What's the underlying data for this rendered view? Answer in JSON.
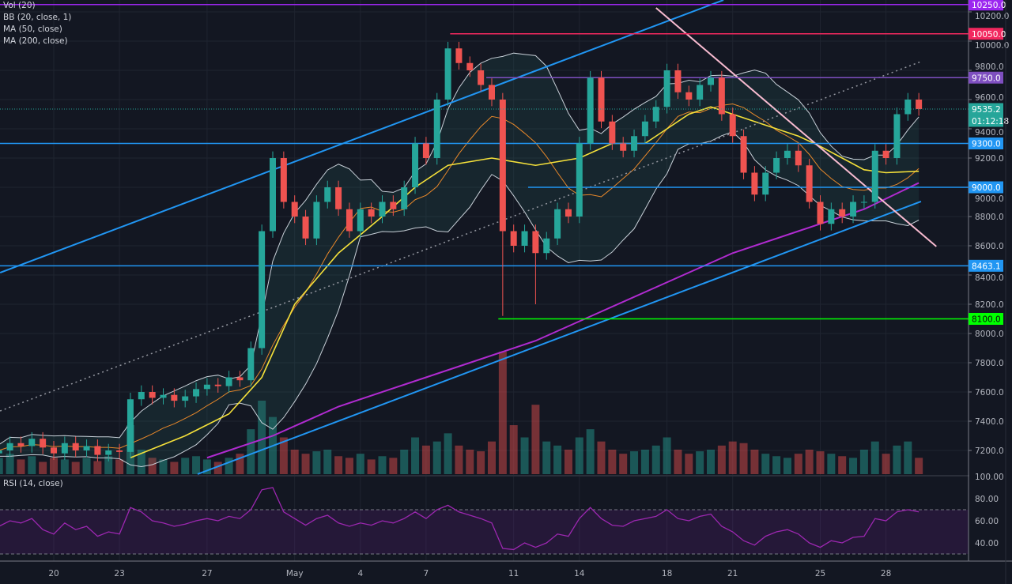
{
  "legend": [
    "Vol (20)",
    "BB (20, close, 1)",
    "MA (50, close)",
    "MA (200, close)"
  ],
  "rsi_label": "RSI (14, close)",
  "colors": {
    "background": "#131722",
    "up": "#26a69a",
    "down": "#ef5350",
    "ma50": "#f5e13a",
    "ma200": "#b02bd0",
    "bb": "#c8d0d8",
    "bb_basis": "#e8882a",
    "rsi": "#9c27b0"
  },
  "chart_data": {
    "type": "candlestick",
    "price_ticks": [
      "10200.0",
      "10000.0",
      "9800.0",
      "9600.0",
      "9400.0",
      "9200.0",
      "9000.0",
      "8800.0",
      "8600.0",
      "8400.0",
      "8200.0",
      "8000.0",
      "7800.0",
      "7600.0",
      "7400.0",
      "7200.0"
    ],
    "price_tick_values": [
      10200,
      10000,
      9800,
      9600,
      9400,
      9200,
      9000,
      8800,
      8600,
      8400,
      8200,
      8000,
      7800,
      7600,
      7400,
      7200
    ],
    "time_ticks": [
      {
        "label": "20",
        "day": 0
      },
      {
        "label": "23",
        "day": 3
      },
      {
        "label": "27",
        "day": 7
      },
      {
        "label": "May",
        "day": 11
      },
      {
        "label": "4",
        "day": 14
      },
      {
        "label": "7",
        "day": 17
      },
      {
        "label": "11",
        "day": 21
      },
      {
        "label": "14",
        "day": 24
      },
      {
        "label": "18",
        "day": 28
      },
      {
        "label": "21",
        "day": 31
      },
      {
        "label": "25",
        "day": 35
      },
      {
        "label": "28",
        "day": 38
      }
    ],
    "start_day": -2.5,
    "step_days": 0.5,
    "closes": [
      7200,
      7250,
      7230,
      7280,
      7220,
      7180,
      7250,
      7200,
      7230,
      7170,
      7200,
      7190,
      7550,
      7600,
      7560,
      7580,
      7540,
      7570,
      7620,
      7650,
      7640,
      7700,
      7680,
      7900,
      8700,
      9200,
      8900,
      8800,
      8650,
      8900,
      9000,
      8850,
      8700,
      8850,
      8800,
      8900,
      8850,
      9000,
      9300,
      9200,
      9600,
      9950,
      9850,
      9800,
      9700,
      9600,
      8700,
      8600,
      8700,
      8550,
      8650,
      8850,
      8800,
      9300,
      9750,
      9450,
      9300,
      9250,
      9350,
      9450,
      9550,
      9800,
      9650,
      9600,
      9700,
      9750,
      9500,
      9350,
      9100,
      8950,
      9100,
      9200,
      9250,
      9150,
      8900,
      8750,
      8850,
      8800,
      8900,
      8900,
      9250,
      9200,
      9500,
      9600,
      9535
    ],
    "wick_lows": {
      "46": 8120,
      "49": 8200
    },
    "volumes": [
      20,
      25,
      18,
      22,
      15,
      20,
      18,
      15,
      20,
      16,
      22,
      18,
      60,
      30,
      20,
      18,
      15,
      20,
      22,
      18,
      15,
      20,
      25,
      55,
      90,
      70,
      45,
      30,
      25,
      28,
      30,
      22,
      20,
      25,
      18,
      22,
      20,
      30,
      45,
      35,
      40,
      50,
      35,
      30,
      28,
      40,
      150,
      60,
      45,
      85,
      40,
      35,
      30,
      45,
      55,
      40,
      30,
      25,
      28,
      30,
      35,
      45,
      30,
      25,
      28,
      30,
      35,
      40,
      38,
      30,
      25,
      22,
      20,
      25,
      30,
      28,
      25,
      22,
      20,
      30,
      40,
      25,
      35,
      40,
      20
    ],
    "rsi": [
      55,
      60,
      58,
      62,
      52,
      48,
      58,
      52,
      55,
      46,
      50,
      48,
      72,
      68,
      60,
      58,
      55,
      57,
      60,
      62,
      60,
      64,
      62,
      70,
      88,
      90,
      68,
      62,
      56,
      62,
      65,
      58,
      55,
      58,
      56,
      60,
      58,
      62,
      68,
      62,
      70,
      74,
      68,
      65,
      62,
      58,
      35,
      34,
      40,
      36,
      40,
      48,
      46,
      62,
      72,
      62,
      56,
      55,
      60,
      62,
      64,
      70,
      62,
      60,
      64,
      66,
      55,
      50,
      42,
      38,
      46,
      50,
      52,
      48,
      40,
      36,
      42,
      40,
      45,
      46,
      62,
      60,
      68,
      70,
      68
    ],
    "ma50": [
      [
        3.5,
        7150
      ],
      [
        6,
        7300
      ],
      [
        8,
        7450
      ],
      [
        9.5,
        7700
      ],
      [
        11,
        8200
      ],
      [
        13,
        8550
      ],
      [
        15,
        8800
      ],
      [
        16.5,
        9000
      ],
      [
        18,
        9150
      ],
      [
        20,
        9200
      ],
      [
        22,
        9150
      ],
      [
        24,
        9200
      ],
      [
        25.5,
        9300
      ],
      [
        27,
        9300
      ],
      [
        28,
        9400
      ],
      [
        29,
        9500
      ],
      [
        30,
        9550
      ],
      [
        31,
        9500
      ],
      [
        32,
        9450
      ],
      [
        33,
        9400
      ],
      [
        34,
        9350
      ],
      [
        35,
        9280
      ],
      [
        36,
        9200
      ],
      [
        37,
        9120
      ],
      [
        38,
        9100
      ],
      [
        39.5,
        9110
      ]
    ],
    "ma200": [
      [
        7,
        7150
      ],
      [
        10,
        7300
      ],
      [
        13,
        7500
      ],
      [
        16,
        7650
      ],
      [
        19,
        7800
      ],
      [
        22,
        7950
      ],
      [
        25,
        8150
      ],
      [
        28,
        8350
      ],
      [
        31,
        8550
      ],
      [
        34,
        8700
      ],
      [
        37,
        8850
      ],
      [
        39.5,
        9030
      ]
    ],
    "trend_lines": [
      {
        "name": "upper-channel",
        "from": [
          -2.45,
          8416
        ],
        "to": [
          30.58,
          10281
        ],
        "color": "#2196f3",
        "dash": false
      },
      {
        "name": "lower-channel",
        "from": [
          6.57,
          7038
        ],
        "to": [
          39.6,
          8903
        ],
        "color": "#2196f3",
        "dash": false
      },
      {
        "name": "dotted-midline",
        "from": [
          -2.45,
          7470
        ],
        "to": [
          39.6,
          9860
        ],
        "color": "#9598a1",
        "dash": true
      },
      {
        "name": "descending-resistance",
        "from": [
          27.5,
          10227
        ],
        "to": [
          40.3,
          8595
        ],
        "color": "#f8bbd0",
        "dash": false
      }
    ],
    "horizontal_levels": [
      {
        "label": "10250.0",
        "value": 10250,
        "from_day": -3,
        "color": "#9c27f0"
      },
      {
        "label": "10050.0",
        "value": 10050,
        "from_day": 18.1,
        "color": "#f2285f"
      },
      {
        "label": "9750.0",
        "value": 9750,
        "from_day": 19.75,
        "color": "#7e4fc0"
      },
      {
        "label": "9300.0",
        "value": 9300,
        "from_day": -3,
        "color": "#2196f3"
      },
      {
        "label": "9000.0",
        "value": 9000,
        "from_day": 21.66,
        "color": "#2196f3"
      },
      {
        "label": "8463.1",
        "value": 8463.1,
        "from_day": -3,
        "color": "#2196f3"
      },
      {
        "label": "8100.0",
        "value": 8100,
        "from_day": 20.3,
        "color": "#00ff00"
      }
    ],
    "last_price": {
      "label": "9535.2",
      "value": 9535.2,
      "countdown": "01:12:18",
      "color": "#26a69a"
    },
    "rsi_ticks": [
      {
        "label": "80.00",
        "value": 80
      },
      {
        "label": "60.00",
        "value": 60
      },
      {
        "label": "40.00",
        "value": 40
      }
    ],
    "rsi_bands": [
      70,
      30
    ],
    "volume_axis_label": "100.00"
  }
}
